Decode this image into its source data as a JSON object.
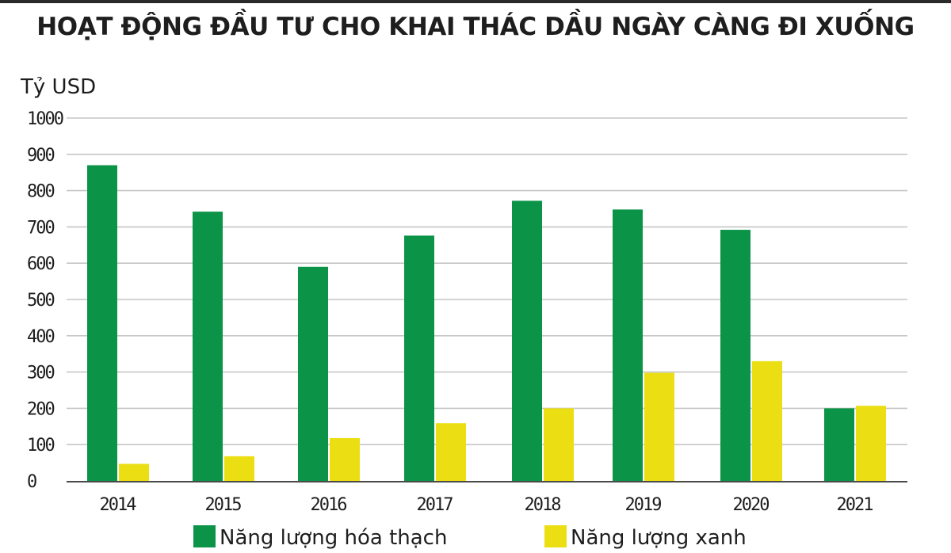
{
  "colors": {
    "fossil": "#0b9447",
    "green_energy": "#ebdf14",
    "grid": "#c6c6c6",
    "axis": "#4a4a4a",
    "text": "#1e1e1e"
  },
  "chart_data": {
    "type": "bar",
    "title": "HOẠT ĐỘNG ĐẦU TƯ CHO KHAI THÁC DẦU NGÀY CÀNG ĐI XUỐNG",
    "ylabel": "Tỷ USD",
    "xlabel": "",
    "ylim": [
      0,
      1000
    ],
    "yticks": [
      0,
      100,
      200,
      300,
      400,
      500,
      600,
      700,
      800,
      900,
      1000
    ],
    "grid": true,
    "legend_position": "bottom",
    "categories": [
      "2014",
      "2015",
      "2016",
      "2017",
      "2018",
      "2019",
      "2020",
      "2021"
    ],
    "series": [
      {
        "name": "Năng lượng hóa thạch",
        "color": "#0b9447",
        "values": [
          870,
          742,
          590,
          676,
          772,
          748,
          692,
          200
        ]
      },
      {
        "name": "Năng lượng xanh",
        "color": "#ebdf14",
        "values": [
          47,
          68,
          118,
          159,
          200,
          298,
          330,
          207
        ]
      }
    ]
  }
}
